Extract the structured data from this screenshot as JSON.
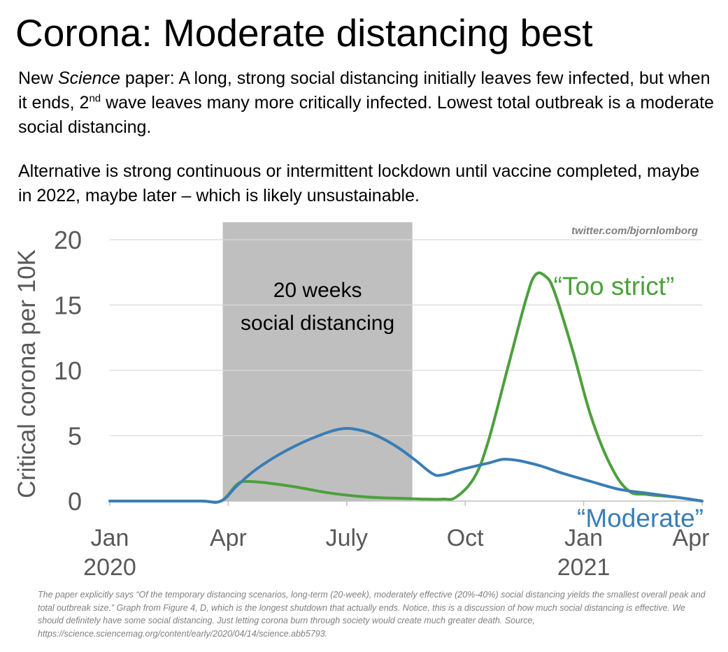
{
  "header": {
    "title": "Corona: Moderate distancing best",
    "para1_a": "New ",
    "para1_italic": "Science",
    "para1_b": " paper: A long, strong social distancing initially leaves few infected, but when it ends, 2",
    "para1_sup": "nd",
    "para1_c": " wave leaves many more critically infected. Lowest total outbreak is a moderate social distancing.",
    "para2": "Alternative is strong continuous or intermittent lockdown until vaccine completed, maybe in 2022, maybe later – which is likely unsustainable."
  },
  "chart_data": {
    "type": "line",
    "title": "",
    "xlabel": "",
    "ylabel": "Critical corona per 10K",
    "ylim": [
      0,
      20
    ],
    "yticks": [
      0,
      5,
      10,
      15,
      20
    ],
    "x_unit": "weeks since Jan 2020",
    "xlim": [
      0,
      65
    ],
    "xticks": [
      {
        "x": 0,
        "line1": "Jan",
        "line2": "2020"
      },
      {
        "x": 13,
        "line1": "Apr",
        "line2": ""
      },
      {
        "x": 26,
        "line1": "July",
        "line2": ""
      },
      {
        "x": 39,
        "line1": "Oct",
        "line2": ""
      },
      {
        "x": 52,
        "line1": "Jan",
        "line2": "2021"
      },
      {
        "x": 65,
        "line1": "Apr",
        "line2": ""
      }
    ],
    "shaded_region": {
      "x0": 12.4,
      "x1": 33.2,
      "label_line1": "20 weeks",
      "label_line2": "social distancing",
      "color": "#bfbfbf"
    },
    "grid": true,
    "watermark": "twitter.com/bjornlomborg",
    "series": [
      {
        "name": "“Moderate”",
        "color": "#3a7db5",
        "x": [
          0,
          5,
          10,
          12.2,
          14.0,
          16.2,
          19.2,
          22.2,
          25.2,
          27.3,
          29.3,
          31.4,
          33.4,
          35.4,
          36.5,
          38.5,
          41.5,
          43.6,
          46.7,
          49.8,
          52.8,
          55.9,
          59.0,
          62.1,
          65
        ],
        "y": [
          0,
          0,
          0,
          0,
          1.2,
          2.5,
          3.8,
          4.8,
          5.5,
          5.45,
          5.0,
          4.2,
          3.2,
          2.1,
          2.0,
          2.4,
          2.9,
          3.2,
          2.8,
          2.1,
          1.5,
          0.9,
          0.6,
          0.3,
          0
        ]
      },
      {
        "name": "“Too strict”",
        "color": "#4ca03c",
        "x": [
          0,
          5,
          10,
          12.2,
          14.0,
          15.1,
          17.1,
          20.2,
          24.3,
          28.4,
          32.4,
          34.5,
          36.5,
          38.0,
          40.0,
          41.5,
          43.6,
          45.7,
          46.7,
          47.8,
          48.8,
          50.8,
          52.8,
          54.9,
          56.9,
          59.0,
          62.1,
          65
        ],
        "y": [
          0,
          0,
          0,
          0,
          1.3,
          1.5,
          1.4,
          1.1,
          0.6,
          0.3,
          0.2,
          0.15,
          0.15,
          0.3,
          1.8,
          4.5,
          10.0,
          15.5,
          17.3,
          17.2,
          16.0,
          11.5,
          6.5,
          2.8,
          0.8,
          0.5,
          0.3,
          0
        ]
      }
    ]
  },
  "footnote": "The paper explicitly says “Of the temporary distancing scenarios, long-term (20-week), moderately effective (20%-40%) social distancing yields the smallest overall peak and total outbreak size.” Graph from Figure 4, D, which is the longest shutdown that actually ends. Notice, this is a discussion of how much social distancing is effective. We should definitely have some social distancing. Just letting corona burn through society would create much greater death. Source, https://science.sciencemag.org/content/early/2020/04/14/science.abb5793."
}
